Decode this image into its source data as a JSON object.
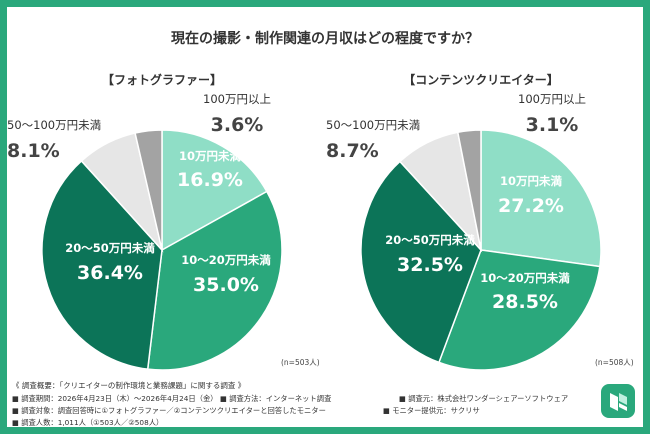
{
  "title": "現在の撮影・制作関連の月収はどの程度ですか？",
  "colors": {
    "level1": "#8fdec6",
    "level2": "#2aa87c",
    "level3": "#0c7458",
    "level4": "#e6e6e6",
    "level5": "#a3a3a3"
  },
  "chart_data": [
    {
      "type": "pie",
      "title": "【フォトグラファー】",
      "categories": [
        "10万円未満",
        "10〜20万円未満",
        "20〜50万円未満",
        "50〜100万円未満",
        "100万円以上"
      ],
      "values": [
        16.9,
        35.0,
        36.4,
        8.1,
        3.6
      ],
      "value_labels": [
        "16.9%",
        "35.0%",
        "36.4%",
        "8.1%",
        "3.6%"
      ],
      "n": "(n=503人)"
    },
    {
      "type": "pie",
      "title": "【コンテンツクリエイター】",
      "categories": [
        "10万円未満",
        "10〜20万円未満",
        "20〜50万円未満",
        "50〜100万円未満",
        "100万円以上"
      ],
      "values": [
        27.2,
        28.5,
        32.5,
        8.7,
        3.1
      ],
      "value_labels": [
        "27.2%",
        "28.5%",
        "32.5%",
        "8.7%",
        "3.1%"
      ],
      "n": "(n=508人)"
    }
  ],
  "footer": {
    "overview": "《 調査概要：「クリエイターの制作環境と業務課題」に関する調査 》",
    "items": [
      "■ 調査期間：2026年4月23日（木）〜2026年4月24日（金）",
      "■ 調査方法：インターネット調査",
      "■ 調査元：株式会社ワンダーシェアーソフトウェア",
      "■ 調査対象：調査回答時に①フォトグラファー／②コンテンツクリエイターと回答したモニター",
      "■ モニター提供元：サクリサ",
      "■ 調査人数：1,011人（①503人／②508人）"
    ]
  }
}
